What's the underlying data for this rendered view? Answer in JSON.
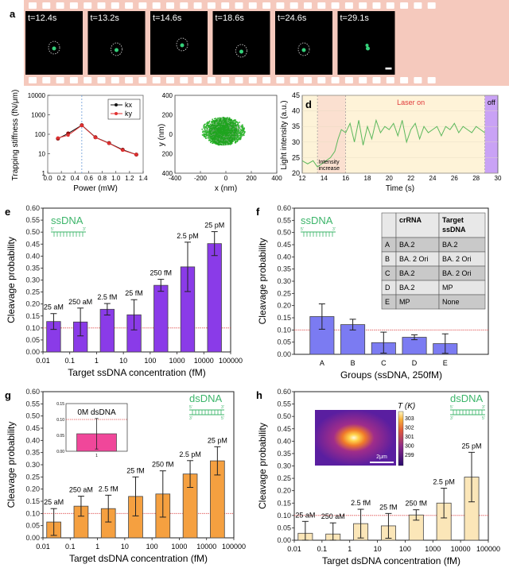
{
  "panels": {
    "a": {
      "letter": "a",
      "frames": [
        {
          "label": "t=12.4s"
        },
        {
          "label": "t=13.2s"
        },
        {
          "label": "t=14.6s"
        },
        {
          "label": "t=18.6s"
        },
        {
          "label": "t=24.6s"
        },
        {
          "label": "t=29.1s"
        }
      ],
      "film_color": "#f5c9bd"
    },
    "b": {
      "letter": "b"
    },
    "c": {
      "letter": "c"
    },
    "d": {
      "letter": "d"
    },
    "e": {
      "letter": "e",
      "tag": "ssDNA",
      "five": "5'",
      "three": "3'"
    },
    "f": {
      "letter": "f",
      "tag": "ssDNA",
      "five": "5'",
      "three": "3'",
      "table": {
        "headers": [
          "",
          "crRNA",
          "Target ssDNA"
        ],
        "rows": [
          [
            "A",
            "BA.2",
            "BA.2"
          ],
          [
            "B",
            "BA. 2 Ori",
            "BA. 2 Ori"
          ],
          [
            "C",
            "BA.2",
            "BA. 2 Ori"
          ],
          [
            "D",
            "BA.2",
            "MP"
          ],
          [
            "E",
            "MP",
            "None"
          ]
        ]
      }
    },
    "g": {
      "letter": "g",
      "tag": "dsDNA",
      "five": "5'",
      "three": "3'"
    },
    "h": {
      "letter": "h",
      "tag": "dsDNA",
      "five": "5'",
      "three": "3'",
      "heatmap": {
        "cbar_title": "T (K)",
        "ticks": [
          "303",
          "302",
          "301",
          "300",
          "299"
        ],
        "scale_bar": "2μm"
      }
    }
  },
  "chart_data": [
    {
      "id": "b",
      "type": "line",
      "xlabel": "Power (mW)",
      "ylabel": "Trapping stiffness (fN/μm)",
      "xlim": [
        0,
        1.4
      ],
      "ylim": [
        1,
        10000
      ],
      "yscale": "log",
      "xticks": [
        "0.0",
        "0.2",
        "0.4",
        "0.6",
        "0.8",
        "1.0",
        "1.2",
        "1.4"
      ],
      "yticks": [
        "1",
        "10",
        "100",
        "1000",
        "10000"
      ],
      "vline": 0.5,
      "legend": "top-right",
      "series": [
        {
          "name": "kx",
          "color": "#111111",
          "x": [
            0.15,
            0.3,
            0.5,
            0.7,
            0.9,
            1.1,
            1.3
          ],
          "y": [
            60,
            110,
            290,
            70,
            35,
            16,
            9
          ]
        },
        {
          "name": "ky",
          "color": "#e03030",
          "x": [
            0.15,
            0.3,
            0.5,
            0.7,
            0.9,
            1.1,
            1.3
          ],
          "y": [
            65,
            90,
            285,
            68,
            34,
            15,
            9
          ]
        }
      ]
    },
    {
      "id": "c",
      "type": "scatter",
      "xlabel": "x (nm)",
      "ylabel": "y (nm)",
      "xlim": [
        -400,
        400
      ],
      "ylim": [
        -400,
        400
      ],
      "xticks": [
        "-400",
        "-200",
        "0",
        "200",
        "400"
      ],
      "yticks": [
        "400",
        "200",
        "0",
        "200",
        "400"
      ],
      "description": "Particle trajectory cloud centred near origin, radius ~200 nm",
      "color": "#2db52d"
    },
    {
      "id": "d",
      "type": "line",
      "xlabel": "Time (s)",
      "ylabel": "Light intensity (a.u.)",
      "xlim": [
        12,
        30
      ],
      "ylim": [
        20,
        45
      ],
      "xticks": [
        "12",
        "14",
        "16",
        "18",
        "20",
        "22",
        "24",
        "26",
        "28",
        "30"
      ],
      "yticks": [
        "20",
        "25",
        "30",
        "35",
        "40",
        "45"
      ],
      "regions": [
        {
          "label": "Intensity increase",
          "from": 13.4,
          "to": 16
        },
        {
          "label": "Laser on",
          "from": 16,
          "to": 28.8
        },
        {
          "label": "off",
          "from": 28.8,
          "to": 30
        }
      ],
      "series": [
        {
          "name": "intensity",
          "color": "#5cb85c",
          "x": [
            12,
            12.5,
            13,
            13.4,
            13.8,
            14.2,
            14.6,
            15,
            15.3,
            15.6,
            16,
            16.4,
            16.8,
            17.2,
            17.6,
            18,
            18.4,
            18.8,
            19.2,
            19.6,
            20,
            20.4,
            20.8,
            21.2,
            21.6,
            22,
            22.4,
            22.8,
            23.2,
            23.6,
            24,
            24.4,
            24.8,
            25.2,
            25.6,
            26,
            26.4,
            26.8,
            27.2,
            27.6,
            28,
            28.4,
            28.8
          ],
          "y": [
            24,
            23,
            24,
            22,
            23,
            24,
            25,
            27,
            31,
            34,
            33,
            36,
            30,
            37,
            29,
            35,
            31,
            37,
            33,
            35,
            34,
            36,
            32,
            37,
            30,
            34,
            36,
            31,
            35,
            33,
            34,
            35,
            32,
            35,
            34,
            36,
            33,
            35,
            34,
            33,
            35,
            34,
            33
          ]
        }
      ]
    },
    {
      "id": "e",
      "type": "bar",
      "xlabel": "Target ssDNA concentration (fM)",
      "ylabel": "Cleavage probability",
      "xscale": "log",
      "xlim": [
        0.01,
        100000
      ],
      "ylim": [
        0,
        0.6
      ],
      "xticks": [
        "0.01",
        "0.1",
        "1",
        "10",
        "100",
        "1000",
        "10000",
        "100000"
      ],
      "yticks": [
        "0.00",
        "0.05",
        "0.10",
        "0.15",
        "0.20",
        "0.25",
        "0.30",
        "0.35",
        "0.40",
        "0.45",
        "0.50",
        "0.55",
        "0.60"
      ],
      "threshold": 0.1,
      "color": "#8a3be8",
      "x": [
        0.025,
        0.25,
        2.5,
        25,
        250,
        2500,
        25000
      ],
      "labels": [
        "25 aM",
        "250 aM",
        "2.5 fM",
        "25 fM",
        "250 fM",
        "2.5 pM",
        "25 pM"
      ],
      "values": [
        0.127,
        0.125,
        0.178,
        0.155,
        0.278,
        0.355,
        0.452
      ],
      "err": [
        0.033,
        0.058,
        0.024,
        0.063,
        0.025,
        0.103,
        0.05
      ]
    },
    {
      "id": "f",
      "type": "bar",
      "xlabel": "Groups (ssDNA, 250fM)",
      "ylabel": "Cleavage probability",
      "ylim": [
        0,
        0.6
      ],
      "yticks": [
        "0.00",
        "0.05",
        "0.10",
        "0.15",
        "0.20",
        "0.25",
        "0.30",
        "0.35",
        "0.40",
        "0.45",
        "0.50",
        "0.55",
        "0.60"
      ],
      "threshold": 0.1,
      "color": "#7b7bf2",
      "categories": [
        "A",
        "B",
        "C",
        "D",
        "E"
      ],
      "values": [
        0.155,
        0.122,
        0.048,
        0.07,
        0.044
      ],
      "err": [
        0.052,
        0.022,
        0.043,
        0.01,
        0.04
      ]
    },
    {
      "id": "g",
      "type": "bar",
      "xlabel": "Target dsDNA concentration (fM)",
      "ylabel": "Cleavage probability",
      "xscale": "log",
      "xlim": [
        0.01,
        100000
      ],
      "ylim": [
        0,
        0.6
      ],
      "xticks": [
        "0.01",
        "0.1",
        "1",
        "10",
        "100",
        "1000",
        "10000",
        "100000"
      ],
      "yticks": [
        "0.00",
        "0.05",
        "0.10",
        "0.15",
        "0.20",
        "0.25",
        "0.30",
        "0.35",
        "0.40",
        "0.45",
        "0.50",
        "0.55",
        "0.60"
      ],
      "threshold": 0.1,
      "color": "#f5a040",
      "x": [
        0.025,
        0.25,
        2.5,
        25,
        250,
        2500,
        25000
      ],
      "labels": [
        "25 aM",
        "250 aM",
        "2.5 fM",
        "25 fM",
        "250 fM",
        "2.5 pM",
        "25 pM"
      ],
      "values": [
        0.065,
        0.13,
        0.12,
        0.17,
        0.18,
        0.262,
        0.316
      ],
      "err": [
        0.055,
        0.041,
        0.055,
        0.08,
        0.095,
        0.055,
        0.058
      ],
      "inset": {
        "title": "0M dsDNA",
        "category": "1",
        "value": 0.055,
        "err": 0.048,
        "ylim": [
          0,
          0.15
        ],
        "yticks": [
          "0.00",
          "0.05",
          "0.10",
          "0.15"
        ],
        "threshold": 0.1,
        "color": "#f0479a"
      }
    },
    {
      "id": "h",
      "type": "bar",
      "xlabel": "Target dsDNA concentration (fM)",
      "ylabel": "Cleavage probability",
      "xscale": "log",
      "xlim": [
        0.01,
        100000
      ],
      "ylim": [
        0,
        0.6
      ],
      "xticks": [
        "0.01",
        "0.1",
        "1",
        "10",
        "100",
        "1000",
        "10000",
        "100000"
      ],
      "yticks": [
        "0.00",
        "0.05",
        "0.10",
        "0.15",
        "0.20",
        "0.25",
        "0.30",
        "0.35",
        "0.40",
        "0.45",
        "0.50",
        "0.55",
        "0.60"
      ],
      "threshold": 0.1,
      "color": "#fbe6b8",
      "x": [
        0.025,
        0.25,
        2.5,
        25,
        250,
        2500,
        25000
      ],
      "labels": [
        "25 aM",
        "250 aM",
        "2.5 fM",
        "25 fM",
        "250 fM",
        "2.5 pM",
        "25 pM"
      ],
      "values": [
        0.028,
        0.025,
        0.067,
        0.058,
        0.102,
        0.15,
        0.255
      ],
      "err": [
        0.048,
        0.045,
        0.058,
        0.05,
        0.021,
        0.06,
        0.1
      ]
    }
  ]
}
